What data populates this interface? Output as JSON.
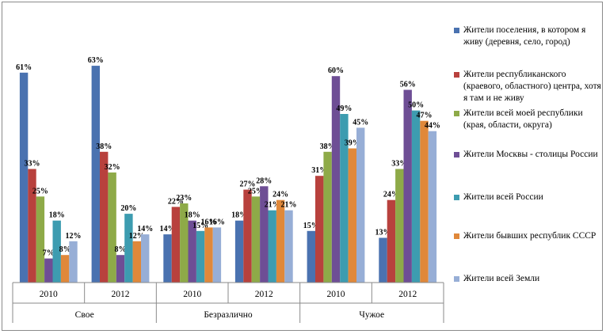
{
  "chart_data": {
    "type": "bar",
    "groups": [
      "Свое",
      "Безразлично",
      "Чужое"
    ],
    "categories": [
      "2010",
      "2012",
      "2010",
      "2012",
      "2010",
      "2012"
    ],
    "ylim": [
      0,
      70
    ],
    "grid": false,
    "legend_position": "right",
    "series": [
      {
        "name": "Жители поселения, в котором я живу (деревня, село, город)",
        "color": "#4a72b0",
        "values": [
          61,
          63,
          14,
          18,
          15,
          13
        ]
      },
      {
        "name": "Жители республиканского (краевого, областного) центра, хотя я там и не живу",
        "color": "#b8413d",
        "values": [
          33,
          38,
          22,
          27,
          31,
          24
        ]
      },
      {
        "name": "Жители всей моей республики (края, области, округа)",
        "color": "#8eaa48",
        "values": [
          25,
          32,
          23,
          25,
          38,
          33
        ]
      },
      {
        "name": "Жители Москвы - столицы России",
        "color": "#6e4e95",
        "values": [
          7,
          8,
          18,
          28,
          60,
          56
        ]
      },
      {
        "name": "Жители всей России",
        "color": "#3d9cb0",
        "values": [
          18,
          20,
          15,
          21,
          49,
          50
        ]
      },
      {
        "name": "Жители бывших республик СССР",
        "color": "#e0883a",
        "values": [
          8,
          12,
          16,
          24,
          39,
          47
        ]
      },
      {
        "name": "Жители всей Земли",
        "color": "#97aed6",
        "values": [
          12,
          14,
          16,
          21,
          45,
          44
        ]
      }
    ]
  }
}
